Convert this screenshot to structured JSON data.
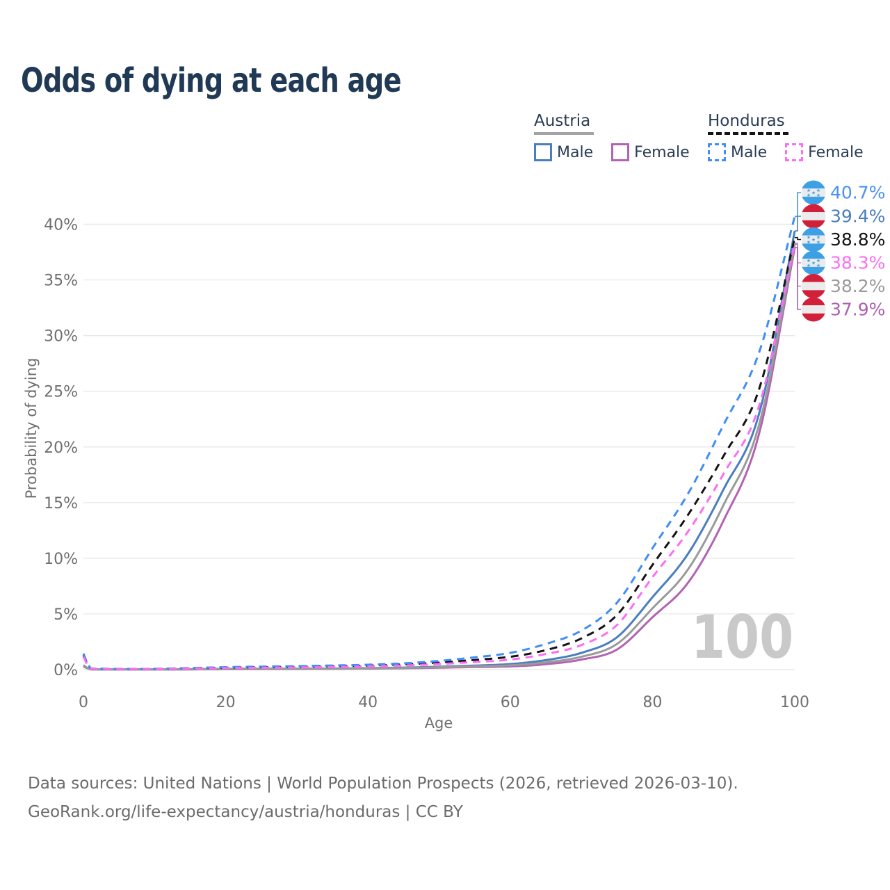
{
  "title": "Odds of dying at each age",
  "watermark": "100",
  "legend": {
    "groups": [
      {
        "label": "Austria",
        "underline_style": "solid",
        "underline_color": "#a3a3a3",
        "underline_width": 86,
        "items": [
          {
            "label": "Male",
            "series": "Austria Male"
          },
          {
            "label": "Female",
            "series": "Austria Female"
          }
        ]
      },
      {
        "label": "Honduras",
        "underline_style": "dashed",
        "underline_color": "#141414",
        "underline_width": 116,
        "items": [
          {
            "label": "Male",
            "series": "Honduras Male"
          },
          {
            "label": "Female",
            "series": "Honduras Female"
          }
        ]
      }
    ]
  },
  "footer": {
    "line1": "Data sources: United Nations | World Population Prospects (2026, retrieved 2026-03-10).",
    "line2": "GeoRank.org/life-expectancy/austria/honduras | CC BY"
  },
  "chart_data": {
    "type": "line",
    "title": "Odds of dying at each age",
    "xlabel": "Age",
    "ylabel": "Probability of dying",
    "xlim": [
      0,
      100
    ],
    "ylim": [
      0,
      42
    ],
    "x_ticks": [
      0,
      20,
      40,
      60,
      80,
      100
    ],
    "y_ticks": [
      0,
      5,
      10,
      15,
      20,
      25,
      30,
      35,
      40
    ],
    "y_tick_suffix": "%",
    "grid": "horizontal",
    "legend_position": "top-right",
    "colors": {
      "grid": "#e9e9e9",
      "axis_text": "#6f6f6f",
      "watermark": "#c9c9c9",
      "title_text": "#203a56",
      "legend_text": "#2b3d54",
      "footer_text": "#6b6b6b"
    },
    "ages": [
      0,
      1,
      2,
      5,
      10,
      15,
      20,
      25,
      30,
      35,
      40,
      45,
      50,
      55,
      60,
      65,
      70,
      75,
      80,
      85,
      90,
      95,
      100
    ],
    "series": [
      {
        "name": "Austria Male",
        "country": "Austria",
        "sex": "male",
        "color": "#4a7ebc",
        "dashed": false,
        "values": [
          0.38,
          0.03,
          0.02,
          0.01,
          0.01,
          0.03,
          0.06,
          0.07,
          0.08,
          0.1,
          0.13,
          0.18,
          0.26,
          0.36,
          0.5,
          0.85,
          1.5,
          2.9,
          6.5,
          10.4,
          16.2,
          23.0,
          39.4
        ]
      },
      {
        "name": "Austria Female",
        "country": "Austria",
        "sex": "female",
        "color": "#b263b2",
        "dashed": false,
        "values": [
          0.29,
          0.02,
          0.01,
          0.01,
          0.01,
          0.02,
          0.03,
          0.04,
          0.05,
          0.06,
          0.08,
          0.12,
          0.17,
          0.23,
          0.28,
          0.48,
          0.9,
          1.8,
          4.7,
          7.8,
          13.4,
          21.2,
          37.9
        ]
      },
      {
        "name": "Austria",
        "country": "Austria",
        "sex": "both",
        "color": "#9a9a9a",
        "dashed": false,
        "values": [
          0.33,
          0.03,
          0.02,
          0.01,
          0.01,
          0.02,
          0.05,
          0.05,
          0.06,
          0.08,
          0.1,
          0.15,
          0.21,
          0.29,
          0.38,
          0.65,
          1.15,
          2.3,
          5.5,
          9.0,
          14.8,
          22.0,
          38.2
        ]
      },
      {
        "name": "Honduras",
        "country": "Honduras",
        "sex": "both",
        "color": "#141414",
        "dashed": true,
        "values": [
          1.3,
          0.1,
          0.07,
          0.05,
          0.06,
          0.12,
          0.17,
          0.21,
          0.25,
          0.3,
          0.36,
          0.46,
          0.63,
          0.87,
          1.15,
          1.75,
          2.8,
          4.9,
          9.4,
          13.9,
          19.2,
          25.2,
          38.8
        ]
      },
      {
        "name": "Honduras Male",
        "country": "Honduras",
        "sex": "male",
        "color": "#3f8df6",
        "dashed": true,
        "values": [
          1.45,
          0.12,
          0.08,
          0.06,
          0.07,
          0.14,
          0.22,
          0.27,
          0.31,
          0.37,
          0.44,
          0.56,
          0.78,
          1.1,
          1.5,
          2.3,
          3.5,
          6.0,
          10.9,
          15.8,
          22.0,
          28.5,
          40.7
        ]
      },
      {
        "name": "Honduras Female",
        "country": "Honduras",
        "sex": "female",
        "color": "#fb6ef2",
        "dashed": true,
        "values": [
          1.15,
          0.09,
          0.06,
          0.04,
          0.05,
          0.09,
          0.13,
          0.16,
          0.19,
          0.23,
          0.28,
          0.37,
          0.5,
          0.68,
          0.9,
          1.4,
          2.2,
          4.0,
          8.3,
          12.4,
          17.6,
          23.7,
          38.3
        ]
      }
    ],
    "end_labels": [
      {
        "series": "Honduras Male",
        "label": "40.7%",
        "value": 40.7,
        "flag": "Honduras",
        "color": "#4a90f5"
      },
      {
        "series": "Austria Male",
        "label": "39.4%",
        "value": 39.4,
        "flag": "Austria",
        "color": "#4a7ebc"
      },
      {
        "series": "Honduras",
        "label": "38.8%",
        "value": 38.8,
        "flag": "Honduras",
        "color": "#141414"
      },
      {
        "series": "Honduras Female",
        "label": "38.3%",
        "value": 38.3,
        "flag": "Honduras",
        "color": "#fb6ef2"
      },
      {
        "series": "Austria",
        "label": "38.2%",
        "value": 38.2,
        "flag": "Austria",
        "color": "#9a9a9a"
      },
      {
        "series": "Austria Female",
        "label": "37.9%",
        "value": 37.9,
        "flag": "Austria",
        "color": "#ad5fb0"
      }
    ],
    "flag_colors": {
      "Honduras": {
        "band": "#3da0e5",
        "field": "#ebebeb"
      },
      "Austria": {
        "band": "#d2203a",
        "field": "#ebebeb"
      }
    }
  }
}
